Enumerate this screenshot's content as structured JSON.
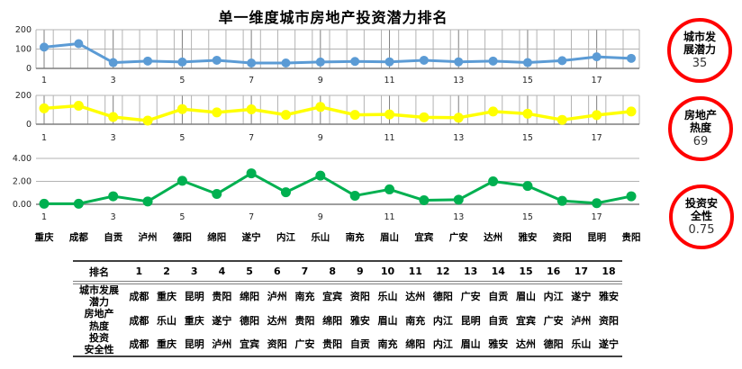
{
  "title": "单一维度城市房地产投资潜力排名",
  "chart_data": [
    {
      "type": "line",
      "name": "城市发展潜力",
      "series_color": "#5B9BD5",
      "x": [
        1,
        2,
        3,
        4,
        5,
        6,
        7,
        8,
        9,
        10,
        11,
        12,
        13,
        14,
        15,
        16,
        17,
        18
      ],
      "values": [
        110,
        128,
        30,
        38,
        33,
        42,
        28,
        28,
        33,
        36,
        34,
        42,
        34,
        38,
        30,
        40,
        60,
        52
      ],
      "ylim": [
        0,
        200
      ],
      "ytick_values": [
        0,
        100,
        200
      ],
      "ytick_labels": [
        "0",
        "100",
        "200"
      ],
      "xtick_labels": [
        "1",
        "3",
        "5",
        "7",
        "9",
        "11",
        "13",
        "15",
        "17"
      ],
      "grid": "horizontal+vertical",
      "legend": "none"
    },
    {
      "type": "line",
      "name": "房地产热度",
      "series_color": "#FFFF00",
      "x": [
        1,
        2,
        3,
        4,
        5,
        6,
        7,
        8,
        9,
        10,
        11,
        12,
        13,
        14,
        15,
        16,
        17,
        18
      ],
      "values": [
        110,
        128,
        50,
        25,
        105,
        82,
        103,
        65,
        120,
        65,
        68,
        48,
        45,
        88,
        73,
        30,
        63,
        88
      ],
      "ylim": [
        0,
        200
      ],
      "ytick_values": [
        0,
        200
      ],
      "ytick_labels": [
        "0",
        "200"
      ],
      "xtick_labels": [
        "1",
        "3",
        "5",
        "7",
        "9",
        "11",
        "13",
        "15",
        "17"
      ],
      "grid": "horizontal+vertical",
      "legend": "none"
    },
    {
      "type": "line",
      "name": "投资安全性",
      "series_color": "#00B050",
      "x": [
        1,
        2,
        3,
        4,
        5,
        6,
        7,
        8,
        9,
        10,
        11,
        12,
        13,
        14,
        15,
        16,
        17,
        18
      ],
      "values": [
        0.05,
        0.05,
        0.7,
        0.25,
        2.05,
        0.9,
        2.7,
        1.05,
        2.5,
        0.75,
        1.3,
        0.35,
        0.4,
        2.0,
        1.6,
        0.3,
        0.1,
        0.7
      ],
      "ylim": [
        0,
        4
      ],
      "ytick_values": [
        0,
        2,
        4
      ],
      "ytick_labels": [
        "0.00",
        "2.00",
        "4.00"
      ],
      "xtick_labels": [
        "1",
        "3",
        "5",
        "7",
        "9",
        "11",
        "13",
        "15",
        "17"
      ],
      "city_labels": [
        "重庆",
        "成都",
        "自贡",
        "泸州",
        "德阳",
        "绵阳",
        "遂宁",
        "内江",
        "乐山",
        "南充",
        "眉山",
        "宜宾",
        "广安",
        "达州",
        "雅安",
        "资阳",
        "昆明",
        "贵阳"
      ],
      "grid": "horizontal",
      "legend": "none"
    }
  ],
  "badges": [
    {
      "label": "城市发\n展潜力",
      "value": "35"
    },
    {
      "label": "房地产\n热度",
      "value": "69"
    },
    {
      "label": "投资安\n全性",
      "value": "0.75"
    }
  ],
  "table": {
    "corner_label": "排名",
    "ranks": [
      "1",
      "2",
      "3",
      "4",
      "5",
      "6",
      "7",
      "8",
      "9",
      "10",
      "11",
      "12",
      "13",
      "14",
      "15",
      "16",
      "17",
      "18"
    ],
    "rows": [
      {
        "label": "城市发展\n潜力",
        "cells": [
          "成都",
          "重庆",
          "昆明",
          "贵阳",
          "绵阳",
          "泸州",
          "南充",
          "宜宾",
          "资阳",
          "乐山",
          "达州",
          "德阳",
          "广安",
          "自贡",
          "眉山",
          "内江",
          "遂宁",
          "雅安"
        ]
      },
      {
        "label": "房地产\n热度",
        "cells": [
          "成都",
          "乐山",
          "重庆",
          "遂宁",
          "德阳",
          "达州",
          "贵阳",
          "绵阳",
          "雅安",
          "眉山",
          "南充",
          "内江",
          "昆明",
          "自贡",
          "宜宾",
          "广安",
          "泸州",
          "资阳"
        ]
      },
      {
        "label": "投资\n安全性",
        "cells": [
          "成都",
          "重庆",
          "昆明",
          "泸州",
          "宜宾",
          "资阳",
          "广安",
          "贵阳",
          "自贡",
          "南充",
          "绵阳",
          "内江",
          "眉山",
          "雅安",
          "达州",
          "德阳",
          "乐山",
          "遂宁"
        ]
      }
    ]
  }
}
